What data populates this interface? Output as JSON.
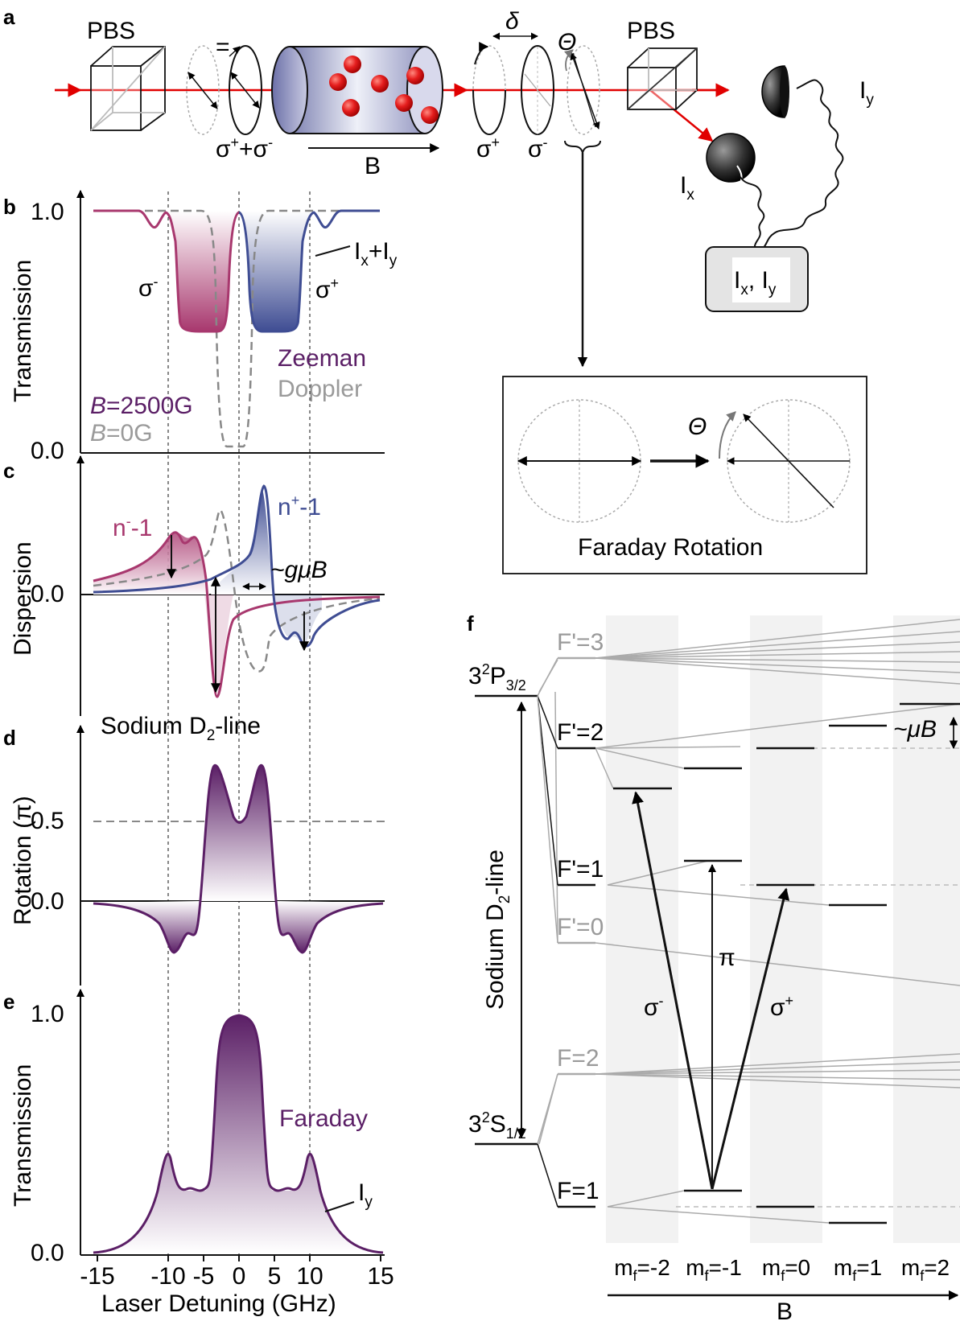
{
  "panels": {
    "a": "a",
    "b": "b",
    "c": "c",
    "d": "d",
    "e": "e",
    "f": "f"
  },
  "setup": {
    "pbs_left": "PBS",
    "pbs_right": "PBS",
    "equals": "=",
    "sigma_plus_minus_base": "σ",
    "sigma_plus_minus_sup1": "+",
    "sigma_plus_minus_mid": "+σ",
    "sigma_plus_minus_sup2": "-",
    "field_label": "B",
    "delta": "δ",
    "theta": "Θ",
    "sigma_plus_base": "σ",
    "sigma_plus_sup": "+",
    "sigma_minus_base": "σ",
    "sigma_minus_sup": "-",
    "iy_base": "I",
    "iy_sub": "y",
    "ix_base": "I",
    "ix_sub": "x",
    "box_ix": "I",
    "box_ix_sub": "x",
    "box_sep": ", ",
    "box_iy": "I",
    "box_iy_sub": "y",
    "inset_theta": "Θ",
    "inset_caption": "Faraday Rotation"
  },
  "panel_b": {
    "ylabel": "Transmission",
    "ytick_top": "1.0",
    "ytick_bottom": "0.0",
    "sigma_minus_base": "σ",
    "sigma_minus_sup": "-",
    "sigma_plus_base": "σ",
    "sigma_plus_sup": "+",
    "ixy_label_base": "I",
    "ixy_sub1": "x",
    "ixy_plus": "+I",
    "ixy_sub2": "y",
    "zeeman": "Zeeman",
    "doppler": "Doppler",
    "b_italic": "B",
    "b2500": "=2500G",
    "b0": "=0G",
    "colors": {
      "zeeman": "#5b1f66",
      "doppler": "#9a9a9a",
      "minus": "#a8386e",
      "plus": "#3f4d93"
    }
  },
  "panel_c": {
    "ylabel": "Dispersion",
    "ytick_zero": "0.0",
    "nminus_base": "n",
    "nminus_sup": "-",
    "nminus_tail": "-1",
    "nplus_base": "n",
    "nplus_sup": "+",
    "nplus_tail": "-1",
    "gmub": "~gμB",
    "sodium_base": "Sodium D",
    "sodium_sub": "2",
    "sodium_tail": "-line"
  },
  "panel_d": {
    "ylabel": "Rotation (π)",
    "ytick_half": "0.5",
    "ytick_zero": "0.0"
  },
  "panel_e": {
    "ylabel": "Transmission",
    "ytick_top": "1.0",
    "ytick_bottom": "0.0",
    "faraday": "Faraday",
    "iy_base": "I",
    "iy_sub": "y",
    "xlabel": "Laser Detuning (GHz)",
    "xticks": [
      "-15",
      "-10",
      "-5",
      "0",
      "5",
      "10",
      "15"
    ]
  },
  "panel_f": {
    "p32_base": "3",
    "p32_sup": "2",
    "p32_letter": "P",
    "p32_sub": "3/2",
    "s12_base": "3",
    "s12_sup": "2",
    "s12_letter": "S",
    "s12_sub": "1/2",
    "fp3": "F'=3",
    "fp2": "F'=2",
    "fp1": "F'=1",
    "fp0": "F'=0",
    "f2": "F=2",
    "f1": "F=1",
    "vertical": "Sodium D",
    "vertical_sub": "2",
    "vertical_tail": "-line",
    "mub": "~μB",
    "sigma_minus_base": "σ",
    "sigma_minus_sup": "-",
    "pi": "π",
    "sigma_plus_base": "σ",
    "sigma_plus_sup": "+",
    "mf_labels": [
      {
        "pre": "m",
        "sub": "f",
        "val": "=-2"
      },
      {
        "pre": "m",
        "sub": "f",
        "val": "=-1"
      },
      {
        "pre": "m",
        "sub": "f",
        "val": "=0"
      },
      {
        "pre": "m",
        "sub": "f",
        "val": "=1"
      },
      {
        "pre": "m",
        "sub": "f",
        "val": "=2"
      }
    ],
    "b_axis": "B"
  }
}
